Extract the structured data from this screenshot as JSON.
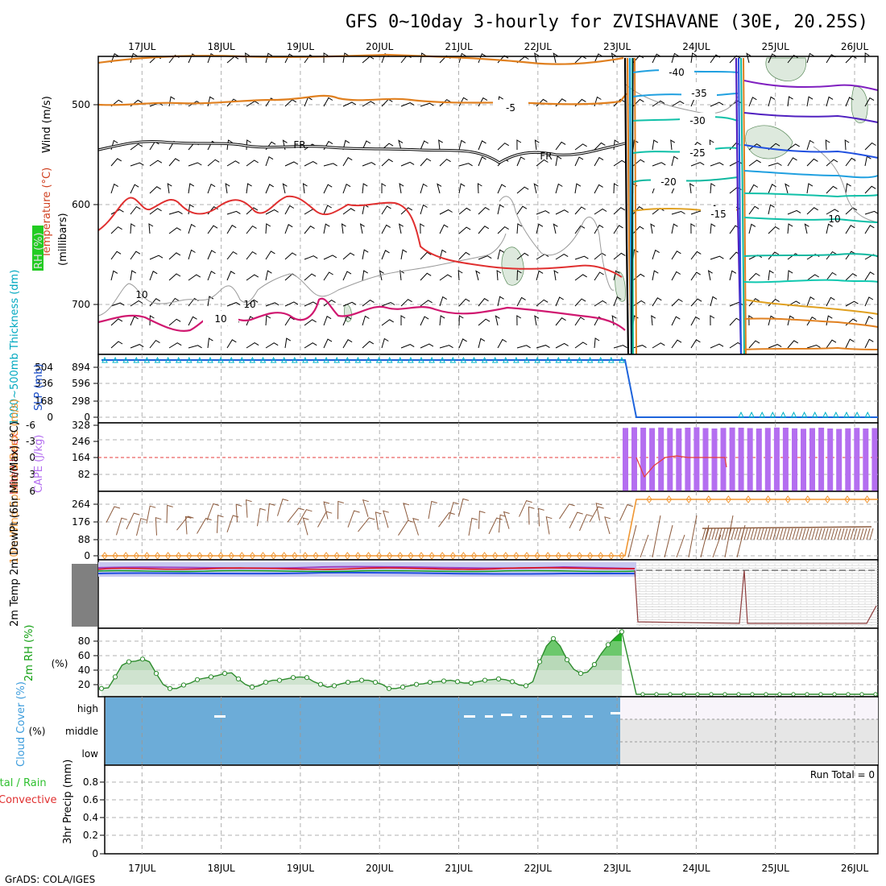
{
  "page": {
    "title": "GFS 0~10day 3-hourly for ZVISHAVANE (30E, 20.25S)",
    "credit": "GrADS: COLA/IGES"
  },
  "chart_data": {
    "type": "meteogram",
    "x_labels": [
      "17JUL",
      "18JUL",
      "19JUL",
      "20JUL",
      "21JUL",
      "22JUL",
      "23JUL",
      "24JUL",
      "25JUL",
      "26JUL"
    ],
    "x_range_days": [
      0,
      10
    ],
    "upper_air": {
      "ylabel_wind": "Wind (m/s)",
      "ylabel_temp": "Temperature (°C)",
      "ylabel_rh": "RH (%)",
      "ylabel_units": "(millibars)",
      "yticks": [
        "500",
        "600",
        "700"
      ],
      "contour_labels": [
        "-5",
        "FR",
        "FR",
        "10",
        "10",
        "10",
        "-40",
        "-35",
        "-30",
        "-25",
        "-20",
        "-15",
        "10"
      ],
      "colors": {
        "temp_cold": "#e08020",
        "freezing": "#000000",
        "temp_warm": "#e03030",
        "temp_hot": "#d01870",
        "rh": "#909090"
      }
    },
    "thickness_slp": {
      "ylabel": "1000~500mb Thickness (dm)",
      "ylabel2": "SLP (mb)",
      "left_ticks": [
        "504",
        "336",
        "168",
        "0"
      ],
      "right_ticks": [
        "894",
        "596",
        "298",
        "0"
      ],
      "colors": {
        "slp": "#1e64dc",
        "thickness": "#00b4c8"
      }
    },
    "cape_li": {
      "ylabel": "Lifted Index",
      "ylabel2": "CAPE (J/kg)",
      "left_ticks": [
        "-6",
        "-3",
        "0",
        "3",
        "6"
      ],
      "right_ticks": [
        "328",
        "246",
        "164",
        "82"
      ],
      "cape_values": [
        315,
        318,
        316,
        314,
        317,
        315,
        313,
        316,
        318,
        314,
        312,
        315,
        317,
        316,
        314,
        312,
        315,
        317,
        316,
        313,
        311,
        314,
        316,
        312,
        310,
        313,
        315,
        312,
        314
      ],
      "colors": {
        "cape": "#b46ef0",
        "li": "#e63c3c"
      }
    },
    "wind10m": {
      "ylabel": "10m Wind Speed & Barbs (m/s)",
      "yticks": [
        "264",
        "176",
        "88",
        "0"
      ],
      "colors": {
        "speed": "#f09632",
        "barbs": "#8c5a3c"
      }
    },
    "temp2m": {
      "ylabel": "2m Temp 2m DewPt (6hr Min/Max) (°C)",
      "colors": {
        "temp": "#e01010",
        "dew": "#10a020",
        "min": "#2050e0",
        "max": "#a040c0"
      }
    },
    "rh2m": {
      "ylabel": "2m RH (%)",
      "yticks": [
        "80",
        "60",
        "40",
        "20"
      ],
      "values": [
        12,
        13,
        29,
        46,
        51,
        52,
        55,
        51,
        34,
        18,
        12,
        12,
        17,
        20,
        25,
        27,
        29,
        31,
        34,
        35,
        26,
        18,
        14,
        16,
        21,
        24,
        24,
        26,
        28,
        29,
        28,
        22,
        18,
        14,
        16,
        19,
        21,
        22,
        24,
        24,
        21,
        18,
        12,
        12,
        14,
        16,
        18,
        19,
        21,
        22,
        23,
        24,
        22,
        20,
        20,
        22,
        24,
        25,
        26,
        25,
        22,
        17,
        16,
        22,
        51,
        74,
        85,
        74,
        54,
        40,
        34,
        36,
        47,
        63,
        76,
        86,
        95
      ],
      "after_values": 0,
      "colors": {
        "fill_dark": "#12a012",
        "fill_light": "#dceedc",
        "line": "#2d8c2d"
      }
    },
    "cloud": {
      "ylabel": "Cloud Cover (%)",
      "levels": [
        "high",
        "middle",
        "low"
      ],
      "colors": {
        "cover": "#6cacd8",
        "empty_high": "#f8f4fa",
        "empty_low": "#e6e6e6"
      }
    },
    "precip": {
      "ylabel": "3hr Precip (mm)",
      "legend_left": "Total / Rain",
      "legend_right": "Convective",
      "yticks": [
        "0.8",
        "0.6",
        "0.4",
        "0.2",
        "0"
      ],
      "run_total": "Run Total = 0",
      "colors": {
        "total": "#30c030",
        "convective": "#e03030"
      }
    }
  }
}
